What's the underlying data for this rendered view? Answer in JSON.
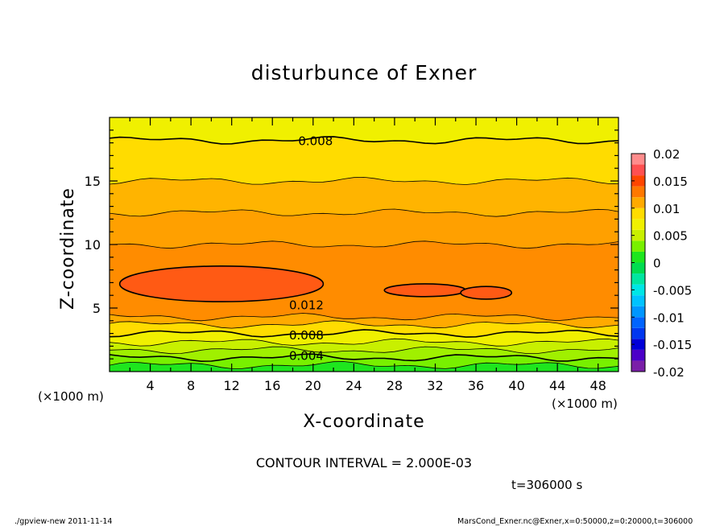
{
  "chart_data": {
    "type": "contour",
    "title": "disturbunce of Exner",
    "xlabel": "X-coordinate",
    "ylabel": "Z-coordinate",
    "x_unit_label": "(×1000 m)",
    "y_unit_label": "(×1000 m)",
    "xlim": [
      0,
      50
    ],
    "ylim": [
      0,
      20
    ],
    "x_ticks": [
      4,
      8,
      12,
      16,
      20,
      24,
      28,
      32,
      36,
      40,
      44,
      48
    ],
    "y_ticks": [
      5,
      10,
      15
    ],
    "contour_interval_text": "CONTOUR INTERVAL = 2.000E-03",
    "time_text": "t=306000 s",
    "contour_labels": [
      {
        "text": "0.008",
        "x": 18.5,
        "z": 18.2
      },
      {
        "text": "0.012",
        "x": 17.6,
        "z": 5.3
      },
      {
        "text": "0.008",
        "x": 17.6,
        "z": 2.9
      },
      {
        "text": "0.004",
        "x": 17.6,
        "z": 1.3
      }
    ],
    "colorbar": {
      "ticks": [
        "0.02",
        "0.015",
        "0.01",
        "0.005",
        "0",
        "-0.005",
        "-0.01",
        "-0.015",
        "-0.02"
      ],
      "bands": [
        {
          "from": -0.02,
          "to": -0.018,
          "color": "#7a1fa8"
        },
        {
          "from": -0.018,
          "to": -0.016,
          "color": "#4b00c8"
        },
        {
          "from": -0.016,
          "to": -0.014,
          "color": "#0000d8"
        },
        {
          "from": -0.014,
          "to": -0.012,
          "color": "#0037f0"
        },
        {
          "from": -0.012,
          "to": -0.01,
          "color": "#0064ff"
        },
        {
          "from": -0.01,
          "to": -0.008,
          "color": "#0096ff"
        },
        {
          "from": -0.008,
          "to": -0.006,
          "color": "#00c3ff"
        },
        {
          "from": -0.006,
          "to": -0.004,
          "color": "#00e6e6"
        },
        {
          "from": -0.004,
          "to": -0.002,
          "color": "#00e6a0"
        },
        {
          "from": -0.002,
          "to": 0.0,
          "color": "#00dc50"
        },
        {
          "from": 0.0,
          "to": 0.002,
          "color": "#1ee61e"
        },
        {
          "from": 0.002,
          "to": 0.004,
          "color": "#78f000"
        },
        {
          "from": 0.004,
          "to": 0.006,
          "color": "#c8f000"
        },
        {
          "from": 0.006,
          "to": 0.008,
          "color": "#f0f000"
        },
        {
          "from": 0.008,
          "to": 0.01,
          "color": "#ffdc00"
        },
        {
          "from": 0.01,
          "to": 0.012,
          "color": "#ffaa00"
        },
        {
          "from": 0.012,
          "to": 0.014,
          "color": "#ff7800"
        },
        {
          "from": 0.014,
          "to": 0.016,
          "color": "#ff4600"
        },
        {
          "from": 0.016,
          "to": 0.018,
          "color": "#ff5050"
        },
        {
          "from": 0.018,
          "to": 0.02,
          "color": "#ff8c8c"
        }
      ]
    },
    "field_bands": [
      {
        "z_from": 0.0,
        "z_to": 0.5,
        "value": 0.001,
        "color": "#1ee61e"
      },
      {
        "z_from": 0.5,
        "z_to": 1.1,
        "value": 0.003,
        "color": "#78f000"
      },
      {
        "z_from": 1.1,
        "z_to": 1.7,
        "value": 0.004,
        "color": "#a0f000"
      },
      {
        "z_from": 1.7,
        "z_to": 2.3,
        "value": 0.005,
        "color": "#c8f000"
      },
      {
        "z_from": 2.3,
        "z_to": 3.0,
        "value": 0.007,
        "color": "#f0f000"
      },
      {
        "z_from": 3.0,
        "z_to": 3.7,
        "value": 0.009,
        "color": "#ffdc00"
      },
      {
        "z_from": 3.7,
        "z_to": 4.3,
        "value": 0.011,
        "color": "#ffaa00"
      },
      {
        "z_from": 4.3,
        "z_to": 10.0,
        "value": 0.012,
        "color": "#ff8c00"
      },
      {
        "z_from": 10.0,
        "z_to": 12.5,
        "value": 0.011,
        "color": "#ffa000"
      },
      {
        "z_from": 12.5,
        "z_to": 15.0,
        "value": 0.01,
        "color": "#ffb400"
      },
      {
        "z_from": 15.0,
        "z_to": 18.2,
        "value": 0.009,
        "color": "#ffdc00"
      },
      {
        "z_from": 18.2,
        "z_to": 20.0,
        "value": 0.007,
        "color": "#f0f000"
      }
    ],
    "high_regions": [
      {
        "value": 0.014,
        "color": "#ff5a14",
        "x_center": 11,
        "z_center": 6.9,
        "x_radius": 10,
        "z_radius": 1.4
      },
      {
        "value": 0.014,
        "color": "#ff5a14",
        "x_center": 31,
        "z_center": 6.4,
        "x_radius": 4,
        "z_radius": 0.5
      },
      {
        "value": 0.014,
        "color": "#ff5a14",
        "x_center": 37,
        "z_center": 6.2,
        "x_radius": 2.5,
        "z_radius": 0.5
      }
    ]
  },
  "footer": {
    "left": "./gpview-new  2011-11-14",
    "right": "MarsCond_Exner.nc@Exner,x=0:50000,z=0:20000,t=306000"
  }
}
